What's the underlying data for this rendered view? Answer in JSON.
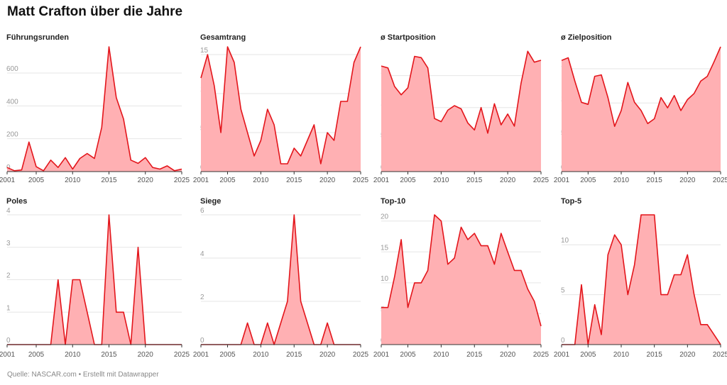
{
  "title": "Matt Crafton über die Jahre",
  "footer": "Quelle: NASCAR.com • Erstellt mit Datawrapper",
  "colors": {
    "line": "#e3151b",
    "fill": "#ffb0b3",
    "grid": "#e6e6e6"
  },
  "chart_data": [
    {
      "type": "area",
      "title": "Führungsrunden",
      "x": [
        2001,
        2002,
        2003,
        2004,
        2005,
        2006,
        2007,
        2008,
        2009,
        2010,
        2011,
        2012,
        2013,
        2014,
        2015,
        2016,
        2017,
        2018,
        2019,
        2020,
        2021,
        2022,
        2023,
        2024,
        2025
      ],
      "values": [
        25,
        5,
        10,
        180,
        30,
        5,
        70,
        25,
        85,
        15,
        80,
        110,
        80,
        270,
        760,
        450,
        320,
        70,
        50,
        85,
        25,
        15,
        35,
        5,
        15
      ],
      "ylim": [
        0,
        760
      ],
      "yticks": [
        "0",
        "200",
        "400",
        "600"
      ],
      "ytick_values": [
        0,
        200,
        400,
        600
      ],
      "xticks": [
        "2001",
        "2005",
        "2010",
        "2015",
        "2020",
        "2025"
      ]
    },
    {
      "type": "area",
      "title": "Gesamtrang",
      "x": [
        2001,
        2002,
        2003,
        2004,
        2005,
        2006,
        2007,
        2008,
        2009,
        2010,
        2011,
        2012,
        2013,
        2014,
        2015,
        2016,
        2017,
        2018,
        2019,
        2020,
        2021,
        2022,
        2023,
        2024,
        2025
      ],
      "values": [
        12,
        15,
        11,
        5,
        16,
        14,
        8,
        5,
        2,
        4,
        8,
        6,
        1,
        1,
        3,
        2,
        4,
        6,
        1,
        5,
        4,
        9,
        9,
        14,
        16
      ],
      "ylim": [
        0,
        16
      ],
      "yticks": [
        "0",
        "5",
        "10",
        "15"
      ],
      "ytick_values": [
        0,
        5,
        10,
        15
      ],
      "xticks": [
        "2001",
        "2005",
        "2010",
        "2015",
        "2020",
        "2025"
      ]
    },
    {
      "type": "area",
      "title": "ø Startposition",
      "x": [
        2001,
        2002,
        2003,
        2004,
        2005,
        2006,
        2007,
        2008,
        2009,
        2010,
        2011,
        2012,
        2013,
        2014,
        2015,
        2016,
        2017,
        2018,
        2019,
        2020,
        2021,
        2022,
        2023,
        2024,
        2025
      ],
      "values": [
        16.5,
        16.2,
        13.3,
        12,
        13.1,
        18,
        17.8,
        16.2,
        8.3,
        7.8,
        9.6,
        10.3,
        9.8,
        7.6,
        6.5,
        10,
        6,
        10.6,
        7.3,
        9,
        7.1,
        13.8,
        18.8,
        17.1,
        17.4
      ],
      "ylim": [
        0,
        19.5
      ],
      "yticks": [
        "0",
        "5",
        "10",
        "15"
      ],
      "ytick_values": [
        0,
        5,
        10,
        15
      ],
      "xticks": [
        "2001",
        "2005",
        "2010",
        "2015",
        "2020",
        "2025"
      ]
    },
    {
      "type": "area",
      "title": "ø Zielposition",
      "x": [
        2001,
        2002,
        2003,
        2004,
        2005,
        2006,
        2007,
        2008,
        2009,
        2010,
        2011,
        2012,
        2013,
        2014,
        2015,
        2016,
        2017,
        2018,
        2019,
        2020,
        2021,
        2022,
        2023,
        2024,
        2025
      ],
      "values": [
        16.2,
        16.6,
        13.2,
        10.1,
        9.8,
        13.9,
        14.1,
        10.8,
        6.6,
        8.9,
        13,
        10.1,
        8.9,
        7,
        7.7,
        10.8,
        9.3,
        11.1,
        8.9,
        10.5,
        11.4,
        13.2,
        13.9,
        16,
        18.2
      ],
      "ylim": [
        0,
        18.2
      ],
      "yticks": [
        "0",
        "5",
        "10",
        "15"
      ],
      "ytick_values": [
        0,
        5,
        10,
        15
      ],
      "xticks": [
        "2001",
        "2005",
        "2010",
        "2015",
        "2020",
        "2025"
      ]
    },
    {
      "type": "area",
      "title": "Poles",
      "x": [
        2001,
        2002,
        2003,
        2004,
        2005,
        2006,
        2007,
        2008,
        2009,
        2010,
        2011,
        2012,
        2013,
        2014,
        2015,
        2016,
        2017,
        2018,
        2019,
        2020,
        2021,
        2022,
        2023,
        2024,
        2025
      ],
      "values": [
        0,
        0,
        0,
        0,
        0,
        0,
        0,
        2,
        0,
        2,
        2,
        1,
        0,
        0,
        4,
        1,
        1,
        0,
        3,
        0,
        0,
        0,
        0,
        0,
        0
      ],
      "ylim": [
        0,
        4
      ],
      "yticks": [
        "0",
        "1",
        "2",
        "3",
        "4"
      ],
      "ytick_values": [
        0,
        1,
        2,
        3,
        4
      ],
      "xticks": [
        "2001",
        "2005",
        "2010",
        "2015",
        "2020",
        "2025"
      ]
    },
    {
      "type": "area",
      "title": "Siege",
      "x": [
        2001,
        2002,
        2003,
        2004,
        2005,
        2006,
        2007,
        2008,
        2009,
        2010,
        2011,
        2012,
        2013,
        2014,
        2015,
        2016,
        2017,
        2018,
        2019,
        2020,
        2021,
        2022,
        2023,
        2024,
        2025
      ],
      "values": [
        0,
        0,
        0,
        0,
        0,
        0,
        0,
        1,
        0,
        0,
        1,
        0,
        1,
        2,
        6,
        2,
        1,
        0,
        0,
        1,
        0,
        0,
        0,
        0,
        0
      ],
      "ylim": [
        0,
        6
      ],
      "yticks": [
        "0",
        "2",
        "4",
        "6"
      ],
      "ytick_values": [
        0,
        2,
        4,
        6
      ],
      "xticks": [
        "2001",
        "2005",
        "2010",
        "2015",
        "2020",
        "2025"
      ]
    },
    {
      "type": "area",
      "title": "Top-10",
      "x": [
        2001,
        2002,
        2003,
        2004,
        2005,
        2006,
        2007,
        2008,
        2009,
        2010,
        2011,
        2012,
        2013,
        2014,
        2015,
        2016,
        2017,
        2018,
        2019,
        2020,
        2021,
        2022,
        2023,
        2024,
        2025
      ],
      "values": [
        6,
        6,
        11,
        17,
        6,
        10,
        10,
        12,
        21,
        20,
        13,
        14,
        19,
        17,
        18,
        16,
        16,
        13,
        18,
        15,
        12,
        12,
        9,
        7,
        3
      ],
      "ylim": [
        0,
        21
      ],
      "yticks": [
        "0",
        "5",
        "10",
        "15",
        "20"
      ],
      "ytick_values": [
        0,
        5,
        10,
        15,
        20
      ],
      "xticks": [
        "2001",
        "2005",
        "2010",
        "2015",
        "2020",
        "2025"
      ]
    },
    {
      "type": "area",
      "title": "Top-5",
      "x": [
        2001,
        2002,
        2003,
        2004,
        2005,
        2006,
        2007,
        2008,
        2009,
        2010,
        2011,
        2012,
        2013,
        2014,
        2015,
        2016,
        2017,
        2018,
        2019,
        2020,
        2021,
        2022,
        2023,
        2024,
        2025
      ],
      "values": [
        0,
        0,
        0,
        6,
        0,
        4,
        1,
        9,
        11,
        10,
        5,
        8,
        13,
        13,
        13,
        5,
        5,
        7,
        7,
        9,
        5,
        2,
        2,
        1,
        0
      ],
      "ylim": [
        0,
        13
      ],
      "yticks": [
        "0",
        "5",
        "10"
      ],
      "ytick_values": [
        0,
        5,
        10
      ],
      "xticks": [
        "2001",
        "2005",
        "2010",
        "2015",
        "2020",
        "2025"
      ]
    }
  ]
}
